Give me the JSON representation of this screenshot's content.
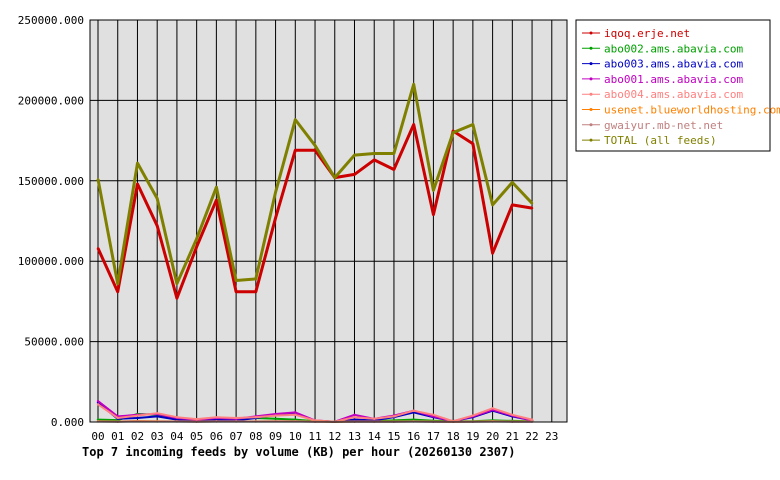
{
  "chart_data": {
    "type": "line",
    "title": "Top 7 incoming feeds by volume (KB) per hour (20260130 2307)",
    "x_ticks": [
      "00",
      "01",
      "02",
      "03",
      "04",
      "05",
      "06",
      "07",
      "08",
      "09",
      "10",
      "11",
      "12",
      "13",
      "14",
      "15",
      "16",
      "17",
      "18",
      "19",
      "20",
      "21",
      "22",
      "23"
    ],
    "y_ticks": [
      "0.000",
      "50000.000",
      "100000.000",
      "150000.000",
      "200000.000",
      "250000.000"
    ],
    "ylim": [
      0,
      250000
    ],
    "grid": true,
    "legend_position": "right",
    "plot_background": "#e0e0e0",
    "series": [
      {
        "name": "iqoq.erje.net",
        "color": "#cc0000",
        "values": [
          108000,
          81000,
          148000,
          122000,
          77000,
          109000,
          138000,
          81000,
          81000,
          127000,
          169000,
          169000,
          152000,
          154000,
          163000,
          157000,
          185000,
          129000,
          181000,
          173000,
          105000,
          135000,
          133000
        ]
      },
      {
        "name": "abo002.ams.abavia.com",
        "color": "#00a000",
        "values": [
          1500,
          1200,
          5000,
          4500,
          2000,
          1000,
          2500,
          2500,
          2500,
          2000,
          1500,
          500,
          200,
          500,
          500,
          1000,
          1500,
          800,
          500,
          500,
          1000,
          700,
          500
        ]
      },
      {
        "name": "abo003.ams.abavia.com",
        "color": "#0000c0",
        "values": [
          12000,
          2000,
          2500,
          3500,
          1500,
          500,
          1500,
          1000,
          2500,
          4500,
          5500,
          800,
          200,
          1500,
          1000,
          3000,
          6000,
          3000,
          500,
          3000,
          7000,
          3500,
          1000
        ]
      },
      {
        "name": "abo001.ams.abavia.com",
        "color": "#c000c0",
        "values": [
          13000,
          3500,
          4500,
          5000,
          2500,
          1500,
          2500,
          2000,
          3500,
          5000,
          6000,
          1000,
          200,
          4500,
          2000,
          4000,
          7000,
          3500,
          500,
          3500,
          7500,
          4000,
          1000
        ]
      },
      {
        "name": "abo004.ams.abavia.com",
        "color": "#ff8080",
        "values": [
          11000,
          2500,
          4000,
          5500,
          3000,
          1800,
          3000,
          2500,
          3000,
          4000,
          4500,
          1000,
          200,
          3000,
          2000,
          3500,
          7000,
          4500,
          500,
          4000,
          8500,
          4500,
          1500
        ]
      },
      {
        "name": "usenet.blueworldhosting.com",
        "color": "#ff8000",
        "values": [
          500,
          300,
          600,
          500,
          400,
          300,
          400,
          400,
          400,
          500,
          500,
          300,
          200,
          300,
          300,
          300,
          400,
          300,
          200,
          300,
          500,
          300,
          300
        ]
      },
      {
        "name": "gwaiyur.mb-net.net",
        "color": "#c08080",
        "values": [
          300,
          200,
          400,
          300,
          300,
          200,
          300,
          300,
          300,
          400,
          400,
          200,
          100,
          200,
          200,
          200,
          300,
          200,
          100,
          200,
          300,
          200,
          200
        ]
      },
      {
        "name": "TOTAL (all feeds)",
        "color": "#808000",
        "values": [
          151000,
          86000,
          161000,
          139000,
          86000,
          114000,
          146000,
          88000,
          89000,
          143000,
          188000,
          172000,
          152000,
          166000,
          167000,
          167000,
          210000,
          144000,
          180000,
          185000,
          135000,
          149000,
          136000
        ]
      }
    ]
  }
}
